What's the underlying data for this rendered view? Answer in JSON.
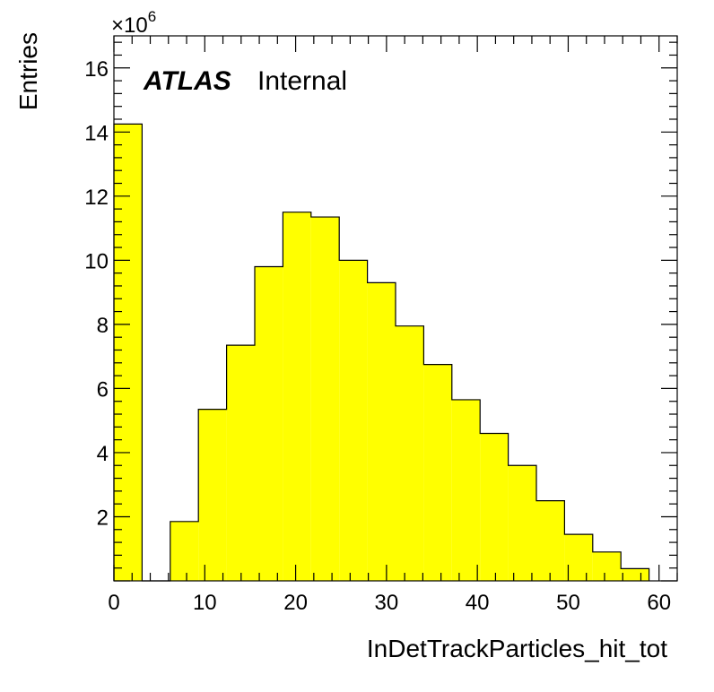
{
  "chart_data": {
    "type": "bar",
    "histogram": true,
    "xlabel": "InDetTrackParticles_hit_tot",
    "ylabel": "Entries",
    "y_multiplier_label": "×10",
    "y_multiplier_exponent": "6",
    "xlim": [
      0,
      62
    ],
    "ylim": [
      0,
      17
    ],
    "x_ticks": [
      0,
      10,
      20,
      30,
      40,
      50,
      60
    ],
    "y_ticks": [
      2,
      4,
      6,
      8,
      10,
      12,
      14,
      16
    ],
    "bins": [
      {
        "x0": 0,
        "x1": 3.1,
        "value": 14.25
      },
      {
        "x0": 3.1,
        "x1": 6.2,
        "value": 0
      },
      {
        "x0": 6.2,
        "x1": 9.3,
        "value": 1.85
      },
      {
        "x0": 9.3,
        "x1": 12.4,
        "value": 5.35
      },
      {
        "x0": 12.4,
        "x1": 15.5,
        "value": 7.35
      },
      {
        "x0": 15.5,
        "x1": 18.6,
        "value": 9.8
      },
      {
        "x0": 18.6,
        "x1": 21.7,
        "value": 11.5
      },
      {
        "x0": 21.7,
        "x1": 24.8,
        "value": 11.35
      },
      {
        "x0": 24.8,
        "x1": 27.9,
        "value": 10.0
      },
      {
        "x0": 27.9,
        "x1": 31.0,
        "value": 9.3
      },
      {
        "x0": 31.0,
        "x1": 34.1,
        "value": 7.95
      },
      {
        "x0": 34.1,
        "x1": 37.2,
        "value": 6.75
      },
      {
        "x0": 37.2,
        "x1": 40.3,
        "value": 5.65
      },
      {
        "x0": 40.3,
        "x1": 43.4,
        "value": 4.6
      },
      {
        "x0": 43.4,
        "x1": 46.5,
        "value": 3.6
      },
      {
        "x0": 46.5,
        "x1": 49.6,
        "value": 2.5
      },
      {
        "x0": 49.6,
        "x1": 52.7,
        "value": 1.45
      },
      {
        "x0": 52.7,
        "x1": 55.8,
        "value": 0.9
      },
      {
        "x0": 55.8,
        "x1": 58.9,
        "value": 0.38
      }
    ],
    "fill_color": "#ffff00",
    "line_color": "#000000"
  },
  "label": {
    "experiment": "ATLAS",
    "status": "Internal"
  }
}
